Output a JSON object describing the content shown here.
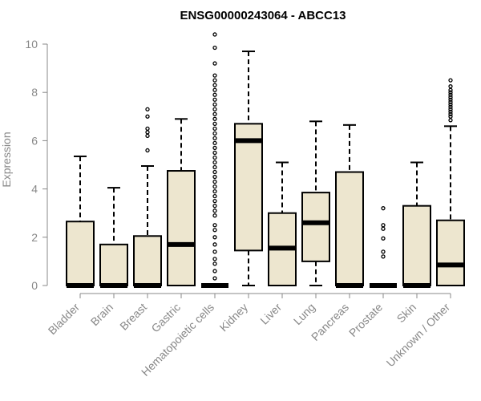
{
  "chart_data": {
    "type": "boxplot",
    "title": "ENSG00000243064 - ABCC13",
    "xlabel": "",
    "ylabel": "Expression",
    "ylim": [
      0,
      10
    ],
    "yticks": [
      0,
      2,
      4,
      6,
      8,
      10
    ],
    "grid": false,
    "legend": "none",
    "colors": {
      "box_fill": "#ede6cf",
      "box_stroke": "#000000",
      "axis": "#888888",
      "label": "#888888"
    },
    "categories": [
      "Bladder",
      "Brain",
      "Breast",
      "Gastric",
      "Hematopoietic cells",
      "Kidney",
      "Liver",
      "Lung",
      "Pancreas",
      "Prostate",
      "Skin",
      "Unknown / Other"
    ],
    "boxes": [
      {
        "category": "Bladder",
        "whisker_low": 0,
        "q1": 0,
        "median": 0,
        "q3": 2.65,
        "whisker_high": 5.35,
        "outliers": []
      },
      {
        "category": "Brain",
        "whisker_low": 0,
        "q1": 0,
        "median": 0,
        "q3": 1.7,
        "whisker_high": 4.05,
        "outliers": []
      },
      {
        "category": "Breast",
        "whisker_low": 0,
        "q1": 0,
        "median": 0,
        "q3": 2.05,
        "whisker_high": 4.95,
        "outliers": [
          5.6,
          6.2,
          6.35,
          6.5,
          7.0,
          7.3
        ]
      },
      {
        "category": "Gastric",
        "whisker_low": 0,
        "q1": 0,
        "median": 1.7,
        "q3": 4.75,
        "whisker_high": 6.9,
        "outliers": []
      },
      {
        "category": "Hematopoietic cells",
        "whisker_low": 0,
        "q1": 0,
        "median": 0,
        "q3": 0,
        "whisker_high": 0,
        "outliers": [
          0.3,
          0.6,
          0.9,
          1.1,
          1.4,
          1.7,
          2.0,
          2.3,
          2.5,
          2.9,
          3.1,
          3.3,
          3.5,
          3.7,
          3.9,
          4.1,
          4.3,
          4.5,
          4.7,
          4.9,
          5.1,
          5.3,
          5.5,
          5.7,
          5.9,
          6.1,
          6.3,
          6.5,
          6.7,
          6.9,
          7.1,
          7.3,
          7.5,
          7.7,
          7.9,
          8.1,
          8.3,
          8.5,
          8.7,
          9.2,
          9.85,
          10.4
        ]
      },
      {
        "category": "Kidney",
        "whisker_low": 0,
        "q1": 1.45,
        "median": 6.0,
        "q3": 6.7,
        "whisker_high": 9.7,
        "outliers": []
      },
      {
        "category": "Liver",
        "whisker_low": 0,
        "q1": 0,
        "median": 1.55,
        "q3": 3.0,
        "whisker_high": 5.1,
        "outliers": []
      },
      {
        "category": "Lung",
        "whisker_low": 0,
        "q1": 1.0,
        "median": 2.6,
        "q3": 3.85,
        "whisker_high": 6.8,
        "outliers": []
      },
      {
        "category": "Pancreas",
        "whisker_low": 0,
        "q1": 0,
        "median": 0,
        "q3": 4.7,
        "whisker_high": 6.65,
        "outliers": []
      },
      {
        "category": "Prostate",
        "whisker_low": 0,
        "q1": 0,
        "median": 0,
        "q3": 0,
        "whisker_high": 0,
        "outliers": [
          1.2,
          1.4,
          1.95,
          2.35,
          2.5,
          3.2
        ]
      },
      {
        "category": "Skin",
        "whisker_low": 0,
        "q1": 0,
        "median": 0,
        "q3": 3.3,
        "whisker_high": 5.1,
        "outliers": []
      },
      {
        "category": "Unknown / Other",
        "whisker_low": 0,
        "q1": 0,
        "median": 0.85,
        "q3": 2.7,
        "whisker_high": 6.6,
        "outliers": [
          6.85,
          7.0,
          7.1,
          7.2,
          7.3,
          7.4,
          7.5,
          7.6,
          7.7,
          7.8,
          7.9,
          8.0,
          8.1,
          8.25,
          8.5
        ]
      }
    ]
  }
}
